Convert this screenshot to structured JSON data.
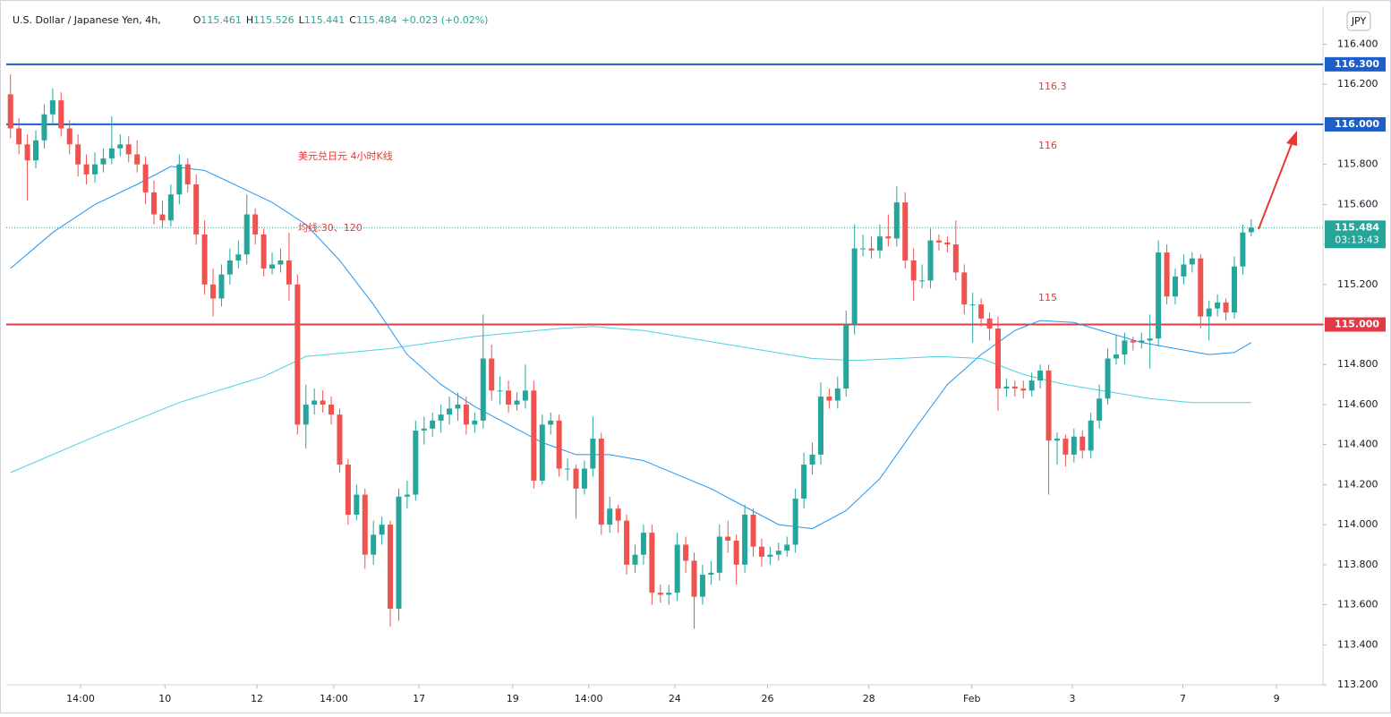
{
  "chart_data": {
    "type": "candlestick",
    "title": "U.S. Dollar / Japanese Yen, 4h,",
    "ohlc_keys": [
      "O",
      "H",
      "L",
      "C"
    ],
    "change": "+0.023 (+0.02%)",
    "currency": "JPY",
    "up_color": "#26a69a",
    "down_color": "#ef5350",
    "open": [
      116.15,
      115.98,
      115.9,
      115.82,
      115.92,
      116.05,
      116.12,
      115.98,
      115.9,
      115.8,
      115.75,
      115.8,
      115.83,
      115.88,
      115.9,
      115.85,
      115.8,
      115.66,
      115.55,
      115.52,
      115.65,
      115.8,
      115.7,
      115.45,
      115.2,
      115.13,
      115.25,
      115.32,
      115.35,
      115.55,
      115.45,
      115.28,
      115.3,
      115.32,
      115.2,
      114.5,
      114.6,
      114.62,
      114.6,
      114.55,
      114.3,
      114.05,
      114.15,
      113.85,
      113.95,
      114.0,
      113.58,
      114.14,
      114.15,
      114.47,
      114.48,
      114.52,
      114.55,
      114.58,
      114.6,
      114.5,
      114.52,
      114.83,
      114.67,
      114.67,
      114.6,
      114.62,
      114.67,
      114.22,
      114.5,
      114.52,
      114.28,
      114.28,
      114.18,
      114.28,
      114.43,
      114.0,
      114.08,
      114.02,
      113.8,
      113.85,
      113.96,
      113.66,
      113.65,
      113.66,
      113.9,
      113.82,
      113.64,
      113.75,
      113.76,
      113.94,
      113.92,
      113.8,
      114.05,
      113.89,
      113.84,
      113.85,
      113.87,
      113.9,
      114.13,
      114.3,
      114.35,
      114.64,
      114.62,
      114.68,
      115.0,
      115.38,
      115.38,
      115.37,
      115.44,
      115.43,
      115.61,
      115.32,
      115.22,
      115.22,
      115.42,
      115.41,
      115.4,
      115.26,
      115.1,
      115.1,
      115.03,
      114.98,
      114.68,
      114.69,
      114.68,
      114.67,
      114.72,
      114.77,
      114.42,
      114.43,
      114.35,
      114.44,
      114.37,
      114.52,
      114.63,
      114.83,
      114.85,
      114.92,
      114.91,
      114.92,
      114.93,
      115.36,
      115.14,
      115.24,
      115.3,
      115.33,
      115.04,
      115.08,
      115.11,
      115.06,
      115.29,
      115.461
    ],
    "high": [
      116.25,
      116.03,
      115.95,
      115.97,
      116.1,
      116.18,
      116.16,
      116.02,
      115.95,
      115.85,
      115.86,
      115.88,
      116.04,
      115.95,
      115.94,
      115.92,
      115.84,
      115.72,
      115.62,
      115.7,
      115.85,
      115.83,
      115.75,
      115.52,
      115.28,
      115.3,
      115.38,
      115.42,
      115.65,
      115.58,
      115.48,
      115.36,
      115.38,
      115.46,
      115.25,
      114.7,
      114.68,
      114.67,
      114.64,
      114.58,
      114.33,
      114.2,
      114.18,
      114.02,
      114.04,
      114.02,
      114.18,
      114.22,
      114.52,
      114.54,
      114.56,
      114.6,
      114.64,
      114.66,
      114.64,
      114.56,
      115.05,
      114.9,
      114.74,
      114.72,
      114.66,
      114.8,
      114.72,
      114.55,
      114.56,
      114.55,
      114.33,
      114.3,
      114.32,
      114.54,
      114.46,
      114.14,
      114.1,
      114.05,
      113.9,
      114.0,
      114.0,
      113.7,
      113.7,
      113.96,
      113.94,
      113.86,
      113.8,
      113.82,
      114.0,
      114.02,
      113.95,
      114.1,
      114.08,
      113.93,
      113.89,
      113.91,
      113.94,
      114.18,
      114.36,
      114.41,
      114.71,
      114.68,
      114.74,
      115.07,
      115.5,
      115.45,
      115.44,
      115.5,
      115.55,
      115.69,
      115.66,
      115.38,
      115.3,
      115.48,
      115.45,
      115.44,
      115.52,
      115.3,
      115.16,
      115.13,
      115.06,
      115.04,
      114.73,
      114.72,
      114.72,
      114.76,
      114.8,
      114.8,
      114.46,
      114.45,
      114.48,
      114.47,
      114.56,
      114.7,
      114.88,
      114.95,
      114.96,
      114.94,
      114.96,
      115.05,
      115.42,
      115.4,
      115.28,
      115.35,
      115.36,
      115.35,
      115.12,
      115.15,
      115.13,
      115.34,
      115.5,
      115.526
    ],
    "low": [
      115.93,
      115.85,
      115.62,
      115.78,
      115.88,
      116.0,
      115.94,
      115.85,
      115.74,
      115.7,
      115.71,
      115.76,
      115.8,
      115.84,
      115.81,
      115.76,
      115.6,
      115.5,
      115.48,
      115.49,
      115.6,
      115.66,
      115.4,
      115.15,
      115.04,
      115.09,
      115.2,
      115.28,
      115.3,
      115.4,
      115.24,
      115.25,
      115.26,
      115.12,
      114.45,
      114.38,
      114.55,
      114.56,
      114.5,
      114.26,
      114.0,
      114.02,
      113.78,
      113.8,
      113.9,
      113.49,
      113.52,
      114.08,
      114.12,
      114.4,
      114.44,
      114.46,
      114.5,
      114.52,
      114.45,
      114.46,
      114.48,
      114.62,
      114.6,
      114.56,
      114.57,
      114.58,
      114.18,
      114.2,
      114.45,
      114.24,
      114.22,
      114.03,
      114.15,
      114.24,
      113.95,
      113.96,
      113.96,
      113.75,
      113.76,
      113.8,
      113.6,
      113.61,
      113.6,
      113.62,
      113.76,
      113.48,
      113.6,
      113.7,
      113.72,
      113.86,
      113.7,
      113.76,
      113.84,
      113.79,
      113.8,
      113.82,
      113.84,
      113.86,
      114.08,
      114.25,
      114.3,
      114.58,
      114.58,
      114.64,
      114.95,
      115.34,
      115.33,
      115.33,
      115.39,
      115.39,
      115.28,
      115.12,
      115.18,
      115.18,
      115.37,
      115.36,
      115.22,
      115.05,
      114.91,
      114.99,
      114.92,
      114.57,
      114.64,
      114.64,
      114.63,
      114.64,
      114.68,
      114.15,
      114.3,
      114.29,
      114.31,
      114.33,
      114.33,
      114.48,
      114.6,
      114.8,
      114.8,
      114.87,
      114.88,
      114.78,
      114.89,
      115.1,
      115.1,
      115.2,
      115.26,
      114.98,
      114.92,
      115.04,
      115.02,
      115.03,
      115.25,
      115.441
    ],
    "close": [
      115.98,
      115.9,
      115.82,
      115.92,
      116.05,
      116.12,
      115.98,
      115.9,
      115.8,
      115.75,
      115.8,
      115.83,
      115.88,
      115.9,
      115.85,
      115.8,
      115.66,
      115.55,
      115.52,
      115.65,
      115.8,
      115.7,
      115.45,
      115.2,
      115.13,
      115.25,
      115.32,
      115.35,
      115.55,
      115.45,
      115.28,
      115.3,
      115.32,
      115.2,
      114.5,
      114.6,
      114.62,
      114.6,
      114.55,
      114.3,
      114.05,
      114.15,
      113.85,
      113.95,
      114.0,
      113.58,
      114.14,
      114.15,
      114.47,
      114.48,
      114.52,
      114.55,
      114.58,
      114.6,
      114.5,
      114.52,
      114.83,
      114.67,
      114.67,
      114.6,
      114.62,
      114.67,
      114.22,
      114.5,
      114.52,
      114.28,
      114.28,
      114.18,
      114.28,
      114.43,
      114.0,
      114.08,
      114.02,
      113.8,
      113.85,
      113.96,
      113.66,
      113.65,
      113.66,
      113.9,
      113.82,
      113.64,
      113.75,
      113.76,
      113.94,
      113.92,
      113.8,
      114.05,
      113.89,
      113.84,
      113.85,
      113.87,
      113.9,
      114.13,
      114.3,
      114.35,
      114.64,
      114.62,
      114.68,
      115.0,
      115.38,
      115.38,
      115.37,
      115.44,
      115.43,
      115.61,
      115.32,
      115.22,
      115.22,
      115.42,
      115.41,
      115.4,
      115.26,
      115.1,
      115.1,
      115.03,
      114.98,
      114.68,
      114.69,
      114.68,
      114.67,
      114.72,
      114.77,
      114.42,
      114.43,
      114.35,
      114.44,
      114.37,
      114.52,
      114.63,
      114.83,
      114.85,
      114.92,
      114.91,
      114.92,
      114.93,
      115.36,
      115.14,
      115.24,
      115.3,
      115.33,
      115.04,
      115.08,
      115.11,
      115.06,
      115.29,
      115.46,
      115.484
    ],
    "series": [
      {
        "color": "#2196f3",
        "x": [
          0,
          5,
          10,
          15,
          19,
          23,
          27,
          31,
          35,
          39,
          43,
          47,
          51,
          55,
          59,
          63,
          67,
          71,
          75,
          79,
          83,
          87,
          91,
          95,
          99,
          103,
          107,
          111,
          115,
          119,
          122,
          126,
          130,
          134,
          138,
          142,
          145,
          147
        ],
        "values": [
          115.28,
          115.46,
          115.6,
          115.7,
          115.79,
          115.77,
          115.69,
          115.61,
          115.5,
          115.32,
          115.1,
          114.85,
          114.7,
          114.59,
          114.5,
          114.41,
          114.35,
          114.35,
          114.32,
          114.25,
          114.18,
          114.09,
          114.0,
          113.98,
          114.07,
          114.23,
          114.47,
          114.7,
          114.85,
          114.97,
          115.02,
          115.01,
          114.96,
          114.91,
          114.88,
          114.85,
          114.86,
          114.91
        ]
      },
      {
        "color": "#4dd0e1",
        "x": [
          0,
          10,
          20,
          30,
          35,
          45,
          55,
          65,
          69,
          75,
          85,
          95,
          100,
          110,
          115,
          120,
          125,
          135,
          140,
          147
        ],
        "values": [
          114.26,
          114.44,
          114.61,
          114.74,
          114.84,
          114.88,
          114.94,
          114.98,
          114.99,
          114.97,
          114.9,
          114.83,
          114.82,
          114.84,
          114.83,
          114.75,
          114.7,
          114.63,
          114.61,
          114.61
        ]
      }
    ],
    "xlim": [
      -0.5,
      155.5
    ],
    "xticks": [
      {
        "value": 8.3,
        "label": "14:00"
      },
      {
        "value": 18.3,
        "label": "10"
      },
      {
        "value": 29.2,
        "label": "12"
      },
      {
        "value": 38.3,
        "label": "14:00"
      },
      {
        "value": 48.4,
        "label": "17"
      },
      {
        "value": 59.5,
        "label": "19"
      },
      {
        "value": 68.5,
        "label": "14:00"
      },
      {
        "value": 78.7,
        "label": "24"
      },
      {
        "value": 89.7,
        "label": "26"
      },
      {
        "value": 101.7,
        "label": "28"
      },
      {
        "value": 113.9,
        "label": "Feb"
      },
      {
        "value": 125.8,
        "label": "3"
      },
      {
        "value": 138.9,
        "label": "7"
      },
      {
        "value": 150.0,
        "label": "9"
      }
    ],
    "ylim": [
      113.2,
      116.59
    ],
    "yticks": [
      {
        "value": 113.2,
        "label": "113.200"
      },
      {
        "value": 113.4,
        "label": "113.400"
      },
      {
        "value": 113.6,
        "label": "113.600"
      },
      {
        "value": 113.8,
        "label": "113.800"
      },
      {
        "value": 114.0,
        "label": "114.000"
      },
      {
        "value": 114.2,
        "label": "114.200"
      },
      {
        "value": 114.4,
        "label": "114.400"
      },
      {
        "value": 114.6,
        "label": "114.600"
      },
      {
        "value": 114.8,
        "label": "114.800"
      },
      {
        "value": 115.0,
        "label": "115.000"
      },
      {
        "value": 115.2,
        "label": "115.200"
      },
      {
        "value": 115.4,
        "label": "115.400"
      },
      {
        "value": 115.6,
        "label": "115.600"
      },
      {
        "value": 115.8,
        "label": "115.800"
      },
      {
        "value": 116.0,
        "label": "116.000"
      },
      {
        "value": 116.2,
        "label": "116.200"
      },
      {
        "value": 116.4,
        "label": "116.400"
      }
    ],
    "levels": [
      {
        "value": 116.3,
        "label": "116.300",
        "color": "#1e5ec8"
      },
      {
        "value": 116.0,
        "label": "116.000",
        "color": "#1e5ec8"
      },
      {
        "value": 115.0,
        "label": "115.000",
        "color": "#e53945"
      }
    ],
    "last_price": {
      "value": 115.484,
      "countdown": "03:13:43"
    },
    "annotations": [
      {
        "text": "美元兑日元 4小时K线"
      },
      {
        "text": "均线:30、120"
      },
      {
        "text": "116.3"
      },
      {
        "text": "116"
      },
      {
        "text": "115"
      }
    ]
  }
}
